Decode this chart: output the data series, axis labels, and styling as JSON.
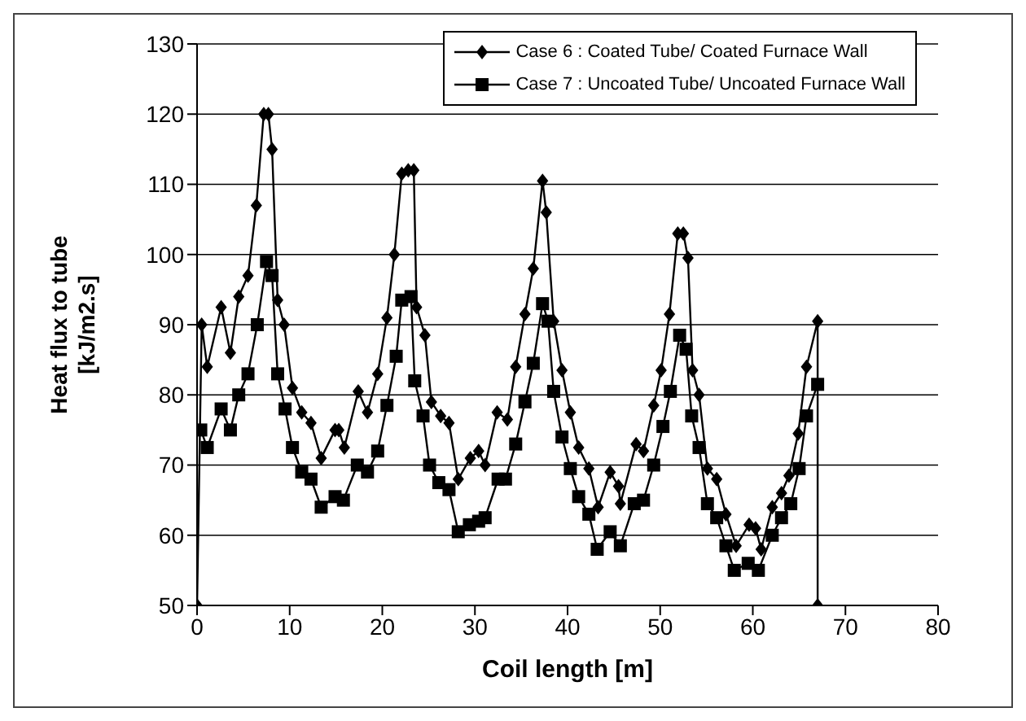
{
  "chart_data": {
    "type": "line",
    "xlabel": "Coil length [m]",
    "ylabel": "Heat flux to tube\n[kJ/m2.s]",
    "xlim": [
      0,
      80
    ],
    "xticks": [
      0,
      10,
      20,
      30,
      40,
      50,
      60,
      70,
      80
    ],
    "ylim": [
      50,
      130
    ],
    "yticks": [
      50,
      60,
      70,
      80,
      90,
      100,
      110,
      120,
      130
    ],
    "grid": "y",
    "legend": "top right",
    "line_style": "solid",
    "series": [
      {
        "name": "Case 6 : Coated Tube/ Coated Furnace Wall",
        "color": "#000000",
        "marker": "diamond",
        "x": [
          0,
          0.5,
          1.1,
          2.6,
          3.6,
          4.5,
          5.5,
          6.4,
          7.2,
          7.7,
          8.1,
          8.7,
          9.4,
          10.3,
          11.3,
          12.3,
          13.4,
          14.9,
          15.3,
          15.9,
          17.4,
          18.4,
          19.5,
          20.5,
          21.3,
          22.1,
          22.8,
          23.4,
          23.7,
          24.6,
          25.3,
          26.3,
          27.2,
          28.2,
          29.5,
          30.4,
          31.1,
          32.4,
          33.5,
          34.4,
          35.4,
          36.3,
          37.3,
          37.7,
          38.5,
          39.4,
          40.3,
          41.2,
          42.3,
          43.3,
          44.6,
          45.5,
          45.7,
          47.4,
          48.2,
          49.3,
          50.1,
          51,
          51.9,
          52.5,
          53,
          53.5,
          54.2,
          55.1,
          56.1,
          57.1,
          58.2,
          59.6,
          60.3,
          60.9,
          62.1,
          63.1,
          63.9,
          64.9,
          65.8,
          67,
          67
        ],
        "values": [
          50,
          90,
          84,
          92.5,
          86,
          94,
          97,
          107,
          120,
          120,
          115,
          93.5,
          90,
          81,
          77.5,
          76,
          71,
          75,
          75,
          72.5,
          80.5,
          77.5,
          83,
          91,
          100,
          111.5,
          112,
          112,
          92.5,
          88.5,
          79,
          77,
          76,
          68,
          71,
          72,
          70,
          77.5,
          76.5,
          84,
          91.5,
          98,
          110.5,
          106,
          90.5,
          83.5,
          77.5,
          72.5,
          69.5,
          64,
          69,
          67,
          64.5,
          73,
          72,
          78.5,
          83.5,
          91.5,
          103,
          103,
          99.5,
          83.5,
          80,
          69.5,
          68,
          63,
          58.5,
          61.5,
          61,
          58,
          64,
          66,
          68.5,
          74.5,
          84,
          90.5,
          50
        ]
      },
      {
        "name": "Case 7 : Uncoated Tube/ Uncoated Furnace Wall",
        "color": "#000000",
        "marker": "square",
        "x": [
          0.4,
          1.1,
          2.6,
          3.6,
          4.5,
          5.5,
          6.5,
          7.5,
          8.1,
          8.7,
          9.5,
          10.3,
          11.3,
          12.3,
          13.4,
          14.9,
          15.8,
          17.3,
          18.4,
          19.5,
          20.5,
          21.5,
          22.1,
          23.1,
          23.5,
          24.4,
          25.1,
          26.1,
          27.2,
          28.2,
          29.4,
          30.4,
          31.1,
          32.5,
          33.3,
          34.4,
          35.4,
          36.3,
          37.3,
          37.9,
          38.5,
          39.4,
          40.3,
          41.2,
          42.3,
          43.2,
          44.6,
          45.7,
          47.2,
          48.2,
          49.3,
          50.3,
          51.1,
          52.1,
          52.8,
          53.4,
          54.2,
          55.1,
          56.1,
          57.1,
          58,
          59.5,
          60.6,
          62.1,
          63.1,
          64.1,
          65,
          65.8,
          67
        ],
        "values": [
          75,
          72.5,
          78,
          75,
          80,
          83,
          90,
          99,
          97,
          83,
          78,
          72.5,
          69,
          68,
          64,
          65.5,
          65,
          70,
          69,
          72,
          78.5,
          85.5,
          93.5,
          94,
          82,
          77,
          70,
          67.5,
          66.5,
          60.5,
          61.5,
          62,
          62.5,
          68,
          68,
          73,
          79,
          84.5,
          93,
          90.5,
          80.5,
          74,
          69.5,
          65.5,
          63,
          58,
          60.5,
          58.5,
          64.5,
          65,
          70,
          75.5,
          80.5,
          88.5,
          86.5,
          77,
          72.5,
          64.5,
          62.5,
          58.5,
          55,
          56,
          55,
          60,
          62.5,
          64.5,
          69.5,
          77,
          81.5
        ]
      }
    ]
  }
}
